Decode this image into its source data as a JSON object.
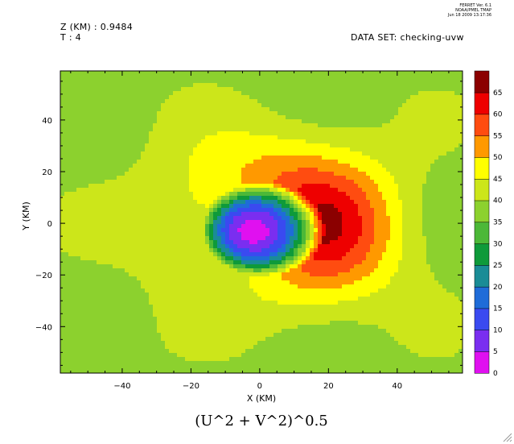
{
  "header": {
    "z_label": "Z (KM) : 0.9484",
    "t_label": "T : 4",
    "dataset_label": "DATA SET: checking-uvw",
    "stamp_line1": "FERRET Ver. 6.1",
    "stamp_line2": "NOAA/PMEL TMAP",
    "stamp_line3": "Jun 18 2009 13:17:36"
  },
  "chart_data": {
    "type": "heatmap",
    "title": "(U^2 + V^2)^0.5",
    "xlabel": "X (KM)",
    "ylabel": "Y (KM)",
    "xlim": [
      -58,
      59
    ],
    "ylim": [
      -58,
      59
    ],
    "xticks": [
      -40,
      -20,
      0,
      20,
      40
    ],
    "yticks": [
      -40,
      -20,
      0,
      20,
      40
    ],
    "xtick_labels": [
      "−40",
      "−20",
      "0",
      "20",
      "40"
    ],
    "ytick_labels": [
      "−40",
      "−20",
      "0",
      "20",
      "40"
    ],
    "colorbar": {
      "levels": [
        0,
        5,
        10,
        15,
        20,
        25,
        30,
        35,
        40,
        45,
        50,
        55,
        60,
        65
      ],
      "labels": [
        "0",
        "5",
        "10",
        "15",
        "20",
        "25",
        "30",
        "35",
        "40",
        "45",
        "50",
        "55",
        "60",
        "65"
      ],
      "colors": [
        "#e010f0",
        "#7a2ef0",
        "#3a4af0",
        "#1f6cd8",
        "#1a8c96",
        "#0e9a3a",
        "#4cb838",
        "#8cd12e",
        "#cce61a",
        "#ffff00",
        "#ff9900",
        "#ff4c10",
        "#ee0000",
        "#8b0000"
      ]
    },
    "field": {
      "center": [
        -1,
        -3
      ],
      "eye_radius": 18,
      "eye_velocity": 3,
      "ring_peak": 52,
      "far_field": 38
    }
  }
}
